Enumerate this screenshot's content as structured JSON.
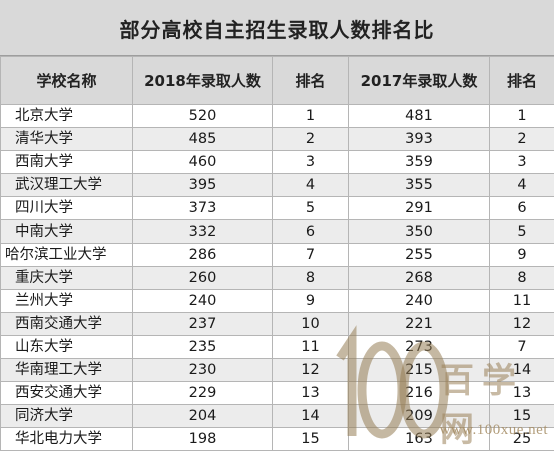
{
  "title": "部分高校自主招生录取人数排名比",
  "headers": [
    "学校名称",
    "2018年录取人数",
    "排名",
    "2017年录取人数",
    "排名"
  ],
  "rows": [
    {
      "school": "北京大学",
      "n2018": "520",
      "r2018": "1",
      "n2017": "481",
      "r2017": "1"
    },
    {
      "school": "清华大学",
      "n2018": "485",
      "r2018": "2",
      "n2017": "393",
      "r2017": "2"
    },
    {
      "school": "西南大学",
      "n2018": "460",
      "r2018": "3",
      "n2017": "359",
      "r2017": "3"
    },
    {
      "school": "武汉理工大学",
      "n2018": "395",
      "r2018": "4",
      "n2017": "355",
      "r2017": "4"
    },
    {
      "school": "四川大学",
      "n2018": "373",
      "r2018": "5",
      "n2017": "291",
      "r2017": "6"
    },
    {
      "school": "中南大学",
      "n2018": "332",
      "r2018": "6",
      "n2017": "350",
      "r2017": "5"
    },
    {
      "school": "哈尔滨工业大学",
      "n2018": "286",
      "r2018": "7",
      "n2017": "255",
      "r2017": "9"
    },
    {
      "school": "重庆大学",
      "n2018": "260",
      "r2018": "8",
      "n2017": "268",
      "r2017": "8"
    },
    {
      "school": "兰州大学",
      "n2018": "240",
      "r2018": "9",
      "n2017": "240",
      "r2017": "11"
    },
    {
      "school": "西南交通大学",
      "n2018": "237",
      "r2018": "10",
      "n2017": "221",
      "r2017": "12"
    },
    {
      "school": "山东大学",
      "n2018": "235",
      "r2018": "11",
      "n2017": "273",
      "r2017": "7"
    },
    {
      "school": "华南理工大学",
      "n2018": "230",
      "r2018": "12",
      "n2017": "215",
      "r2017": "14"
    },
    {
      "school": "西安交通大学",
      "n2018": "229",
      "r2018": "13",
      "n2017": "216",
      "r2017": "13"
    },
    {
      "school": "同济大学",
      "n2018": "204",
      "r2018": "14",
      "n2017": "209",
      "r2017": "15"
    },
    {
      "school": "华北电力大学",
      "n2018": "198",
      "r2018": "15",
      "n2017": "163",
      "r2017": "25"
    }
  ],
  "watermark": {
    "name": "百学网",
    "url": "www.100xue.net"
  },
  "colors": {
    "header_bg": "#d9d9d9",
    "stripe_bg": "#ececec",
    "border": "#b5b5b5",
    "watermark": "#9b825a"
  }
}
